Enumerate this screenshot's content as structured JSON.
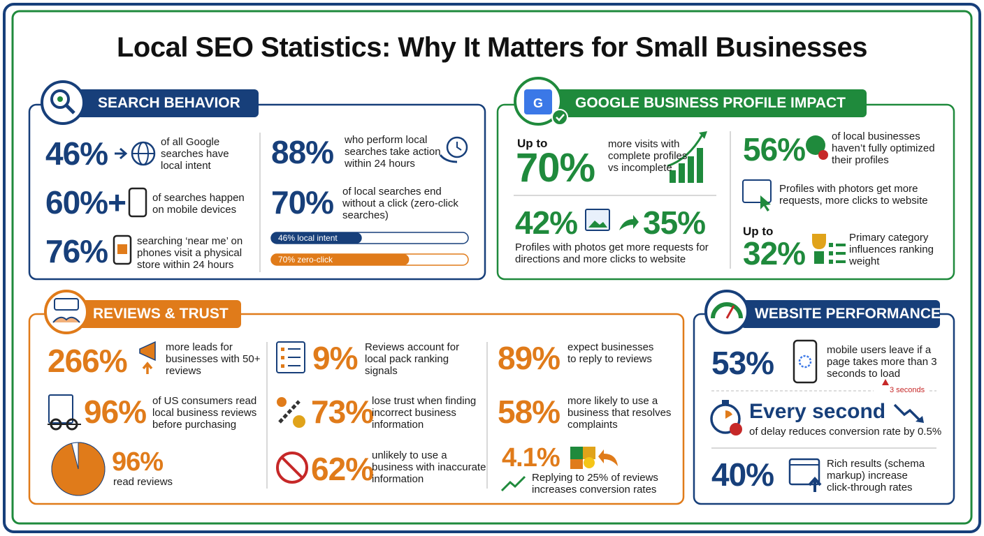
{
  "title": "Local SEO Statistics: Why It Matters for Small Businesses",
  "search_behavior": {
    "heading": "SEARCH BEHAVIOR",
    "stats": [
      {
        "figure": "46%",
        "text": "of all Google searches have local intent"
      },
      {
        "figure": "60%+",
        "text": "of searches happen on mobile devices"
      },
      {
        "figure": "76%",
        "text": "searching ‘near me’ on phones visit a physical store within 24 hours"
      },
      {
        "figure": "88%",
        "text": "who perform local searches take action within 24 hours"
      },
      {
        "figure": "70%",
        "text": "of local searches end without a click (zero-click searches)"
      }
    ],
    "bars": [
      {
        "value": 46,
        "label": "46% local intent",
        "color": "#173f7a"
      },
      {
        "value": 70,
        "label": "70% zero-click",
        "color": "#e07b1a"
      }
    ]
  },
  "google_business_profile": {
    "heading": "GOOGLE BUSINESS PROFILE IMPACT",
    "stats": [
      {
        "prefix": "Up to",
        "figure": "70%",
        "text": "more visits with complete profiles vs incomplete"
      },
      {
        "figure": "42%",
        "figure_2": "35%",
        "text": "Profiles with photos get more requests for directions and more clicks to website"
      },
      {
        "figure": "56%",
        "text": "of local businesses haven’t fully optimized their profiles"
      },
      {
        "text": "Profiles with photors get more requests, more clicks to website"
      },
      {
        "prefix": "Up to",
        "figure": "32%",
        "text": "Primary category influences ranking weight"
      }
    ]
  },
  "reviews_trust": {
    "heading": "REVIEWS & TRUST",
    "stats": [
      {
        "figure": "266%",
        "text": "more leads for businesses with 50+ reviews"
      },
      {
        "figure": "96%",
        "text": "of US consumers read local business reviews before purchasing"
      },
      {
        "figure": "9%",
        "text": "Reviews account for local pack ranking signals"
      },
      {
        "figure": "73%",
        "text": "lose trust when finding incorrect business information"
      },
      {
        "figure": "62%",
        "text": "unlikely to use a business with inaccurate information"
      },
      {
        "figure": "89%",
        "text": "expect businesses to reply to reviews"
      },
      {
        "figure": "58%",
        "text": "more likely to use a business that resolves complaints"
      },
      {
        "figure": "4.1%",
        "text": "Replying to 25% of reviews increases conversion rates"
      }
    ],
    "pie": {
      "value": 96,
      "label": "96%",
      "text": "read reviews",
      "color": "#e07b1a"
    }
  },
  "website_performance": {
    "heading": "WEBSITE PERFORMANCE",
    "stats": [
      {
        "figure": "53%",
        "text": "mobile users leave if a page takes more than 3 seconds to load"
      },
      {
        "figure": "Every second",
        "text": "of delay reduces conversion rate by 0.5%",
        "warning": "3 seconds"
      },
      {
        "figure": "40%",
        "text": "Rich results (schema markup) increase click-through rates"
      }
    ]
  }
}
